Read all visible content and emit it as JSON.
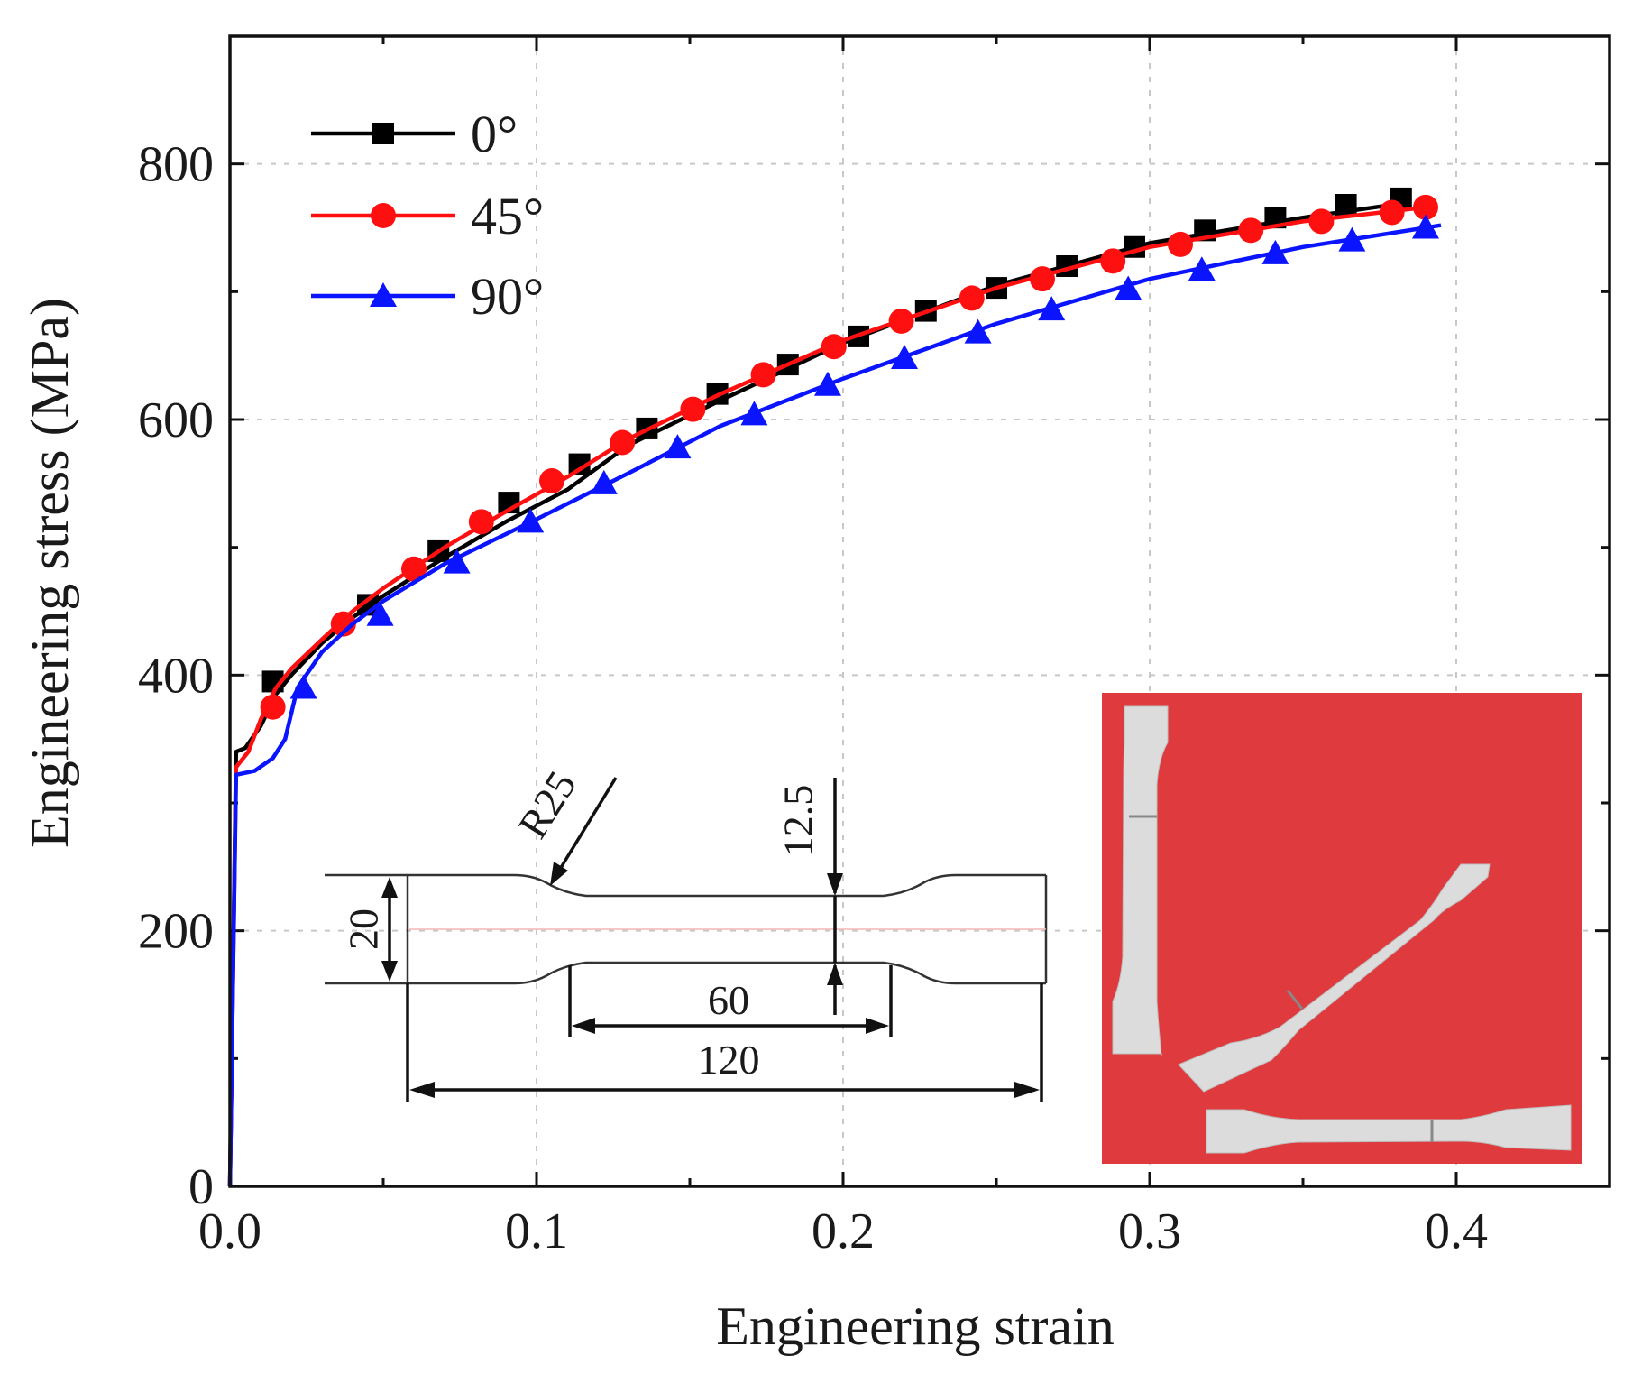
{
  "chart_data": {
    "type": "line",
    "xlabel": "Engineering strain",
    "ylabel": "Engineering stress (MPa)",
    "xlim": [
      0,
      0.45
    ],
    "ylim": [
      0,
      900
    ],
    "xticks": [
      "0.0",
      "0.1",
      "0.2",
      "0.3",
      "0.4"
    ],
    "xtick_values": [
      0,
      0.1,
      0.2,
      0.3,
      0.4
    ],
    "yticks": [
      "0",
      "200",
      "400",
      "600",
      "800"
    ],
    "ytick_values": [
      0,
      200,
      400,
      600,
      800
    ],
    "grid": true,
    "legend_position": "top-left",
    "series": [
      {
        "name": "0°",
        "color": "#000000",
        "marker": "square",
        "line": [
          [
            0,
            0
          ],
          [
            0.002,
            340
          ],
          [
            0.005,
            343
          ],
          [
            0.01,
            360
          ],
          [
            0.015,
            385
          ],
          [
            0.02,
            400
          ],
          [
            0.03,
            425
          ],
          [
            0.04,
            445
          ],
          [
            0.05,
            462
          ],
          [
            0.07,
            492
          ],
          [
            0.09,
            520
          ],
          [
            0.11,
            545
          ],
          [
            0.13,
            580
          ],
          [
            0.16,
            615
          ],
          [
            0.2,
            660
          ],
          [
            0.25,
            705
          ],
          [
            0.3,
            738
          ],
          [
            0.35,
            758
          ],
          [
            0.385,
            770
          ]
        ],
        "marker_x": [
          0.014,
          0.045,
          0.068,
          0.091,
          0.114,
          0.136,
          0.159,
          0.182,
          0.205,
          0.227,
          0.25,
          0.273,
          0.295,
          0.318,
          0.341,
          0.364,
          0.382
        ],
        "marker_y": [
          395,
          455,
          497,
          535,
          565,
          593,
          620,
          643,
          665,
          685,
          703,
          720,
          735,
          748,
          758,
          768,
          773
        ]
      },
      {
        "name": "45°",
        "color": "#ff1010",
        "marker": "circle",
        "line": [
          [
            0,
            0
          ],
          [
            0.002,
            328
          ],
          [
            0.006,
            340
          ],
          [
            0.01,
            365
          ],
          [
            0.015,
            390
          ],
          [
            0.02,
            405
          ],
          [
            0.03,
            428
          ],
          [
            0.04,
            450
          ],
          [
            0.05,
            468
          ],
          [
            0.07,
            500
          ],
          [
            0.09,
            528
          ],
          [
            0.11,
            555
          ],
          [
            0.13,
            585
          ],
          [
            0.16,
            620
          ],
          [
            0.2,
            662
          ],
          [
            0.25,
            703
          ],
          [
            0.3,
            735
          ],
          [
            0.35,
            755
          ],
          [
            0.39,
            766
          ]
        ],
        "marker_x": [
          0.014,
          0.037,
          0.06,
          0.082,
          0.105,
          0.128,
          0.151,
          0.174,
          0.197,
          0.219,
          0.242,
          0.265,
          0.288,
          0.31,
          0.333,
          0.356,
          0.379,
          0.39
        ],
        "marker_y": [
          375,
          440,
          483,
          520,
          552,
          582,
          608,
          635,
          657,
          677,
          695,
          710,
          724,
          737,
          748,
          755,
          762,
          766
        ]
      },
      {
        "name": "90°",
        "color": "#0a14ff",
        "marker": "triangle",
        "line": [
          [
            0,
            0
          ],
          [
            0.002,
            322
          ],
          [
            0.008,
            325
          ],
          [
            0.014,
            335
          ],
          [
            0.018,
            350
          ],
          [
            0.022,
            390
          ],
          [
            0.03,
            418
          ],
          [
            0.04,
            440
          ],
          [
            0.05,
            458
          ],
          [
            0.07,
            487
          ],
          [
            0.1,
            522
          ],
          [
            0.13,
            558
          ],
          [
            0.16,
            595
          ],
          [
            0.2,
            632
          ],
          [
            0.25,
            675
          ],
          [
            0.3,
            710
          ],
          [
            0.35,
            735
          ],
          [
            0.395,
            752
          ]
        ],
        "marker_x": [
          0.024,
          0.049,
          0.074,
          0.098,
          0.122,
          0.146,
          0.171,
          0.195,
          0.22,
          0.244,
          0.268,
          0.293,
          0.317,
          0.341,
          0.366,
          0.39
        ],
        "marker_y": [
          390,
          447,
          488,
          520,
          550,
          578,
          604,
          627,
          648,
          668,
          686,
          702,
          717,
          730,
          740,
          750
        ]
      }
    ],
    "inset_dimensions": [
      "R25",
      "12.5",
      "20",
      "60",
      "120"
    ]
  }
}
